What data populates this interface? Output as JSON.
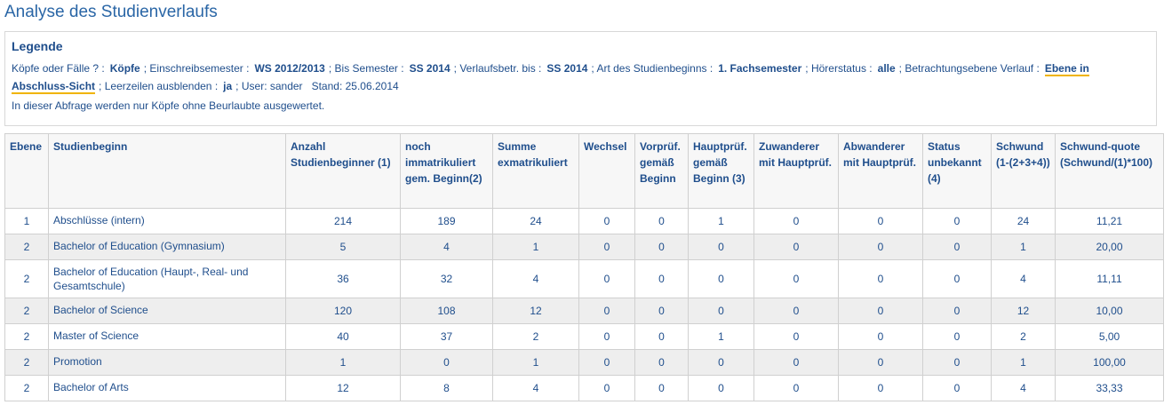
{
  "header": {
    "title": "Analyse des Studienverlaufs"
  },
  "legend": {
    "title": "Legende",
    "separator": ";",
    "items": [
      {
        "label": "Köpfe oder Fälle ? :",
        "value": "Köpfe"
      },
      {
        "label": "Einschreibsemester :",
        "value": "WS 2012/2013"
      },
      {
        "label": "Bis Semester :",
        "value": "SS 2014"
      },
      {
        "label": "Verlaufsbetr. bis :",
        "value": "SS 2014"
      },
      {
        "label": "Art des Studienbeginns :",
        "value": "1. Fachsemester"
      },
      {
        "label": "Hörerstatus :",
        "value": "alle"
      },
      {
        "label": "Betrachtungsebene Verlauf :",
        "value": "Ebene in Abschluss-Sicht"
      },
      {
        "label": "Leerzeilen ausblenden :",
        "value": "ja"
      }
    ],
    "user": "User: sander",
    "date": "Stand: 25.06.2014",
    "note": "In dieser Abfrage werden nur Köpfe ohne Beurlaubte ausgewertet."
  },
  "table": {
    "columns": [
      "Ebene",
      "Studienbeginn",
      "Anzahl Studienbeginner (1)",
      "noch immatrikuliert gem. Beginn(2)",
      "Summe exmatrikuliert",
      "Wechsel",
      "Vorprüf. gemäß Beginn",
      "Hauptprüf. gemäß Beginn (3)",
      "Zuwanderer mit Hauptprüf.",
      "Abwanderer mit Hauptprüf.",
      "Status unbekannt (4)",
      "Schwund (1-(2+3+4))",
      "Schwund-quote (Schwund/(1)*100)"
    ],
    "rows": [
      [
        "1",
        "Abschlüsse (intern)",
        "214",
        "189",
        "24",
        "0",
        "0",
        "1",
        "0",
        "0",
        "0",
        "24",
        "11,21"
      ],
      [
        "2",
        "Bachelor of Education (Gymnasium)",
        "5",
        "4",
        "1",
        "0",
        "0",
        "0",
        "0",
        "0",
        "0",
        "1",
        "20,00"
      ],
      [
        "2",
        "Bachelor of Education (Haupt-, Real- und Gesamtschule)",
        "36",
        "32",
        "4",
        "0",
        "0",
        "0",
        "0",
        "0",
        "0",
        "4",
        "11,11"
      ],
      [
        "2",
        "Bachelor of Science",
        "120",
        "108",
        "12",
        "0",
        "0",
        "0",
        "0",
        "0",
        "0",
        "12",
        "10,00"
      ],
      [
        "2",
        "Master of Science",
        "40",
        "37",
        "2",
        "0",
        "0",
        "1",
        "0",
        "0",
        "0",
        "2",
        "5,00"
      ],
      [
        "2",
        "Promotion",
        "1",
        "0",
        "1",
        "0",
        "0",
        "0",
        "0",
        "0",
        "0",
        "1",
        "100,00"
      ],
      [
        "2",
        "Bachelor of Arts",
        "12",
        "8",
        "4",
        "0",
        "0",
        "0",
        "0",
        "0",
        "0",
        "4",
        "33,33"
      ]
    ]
  }
}
